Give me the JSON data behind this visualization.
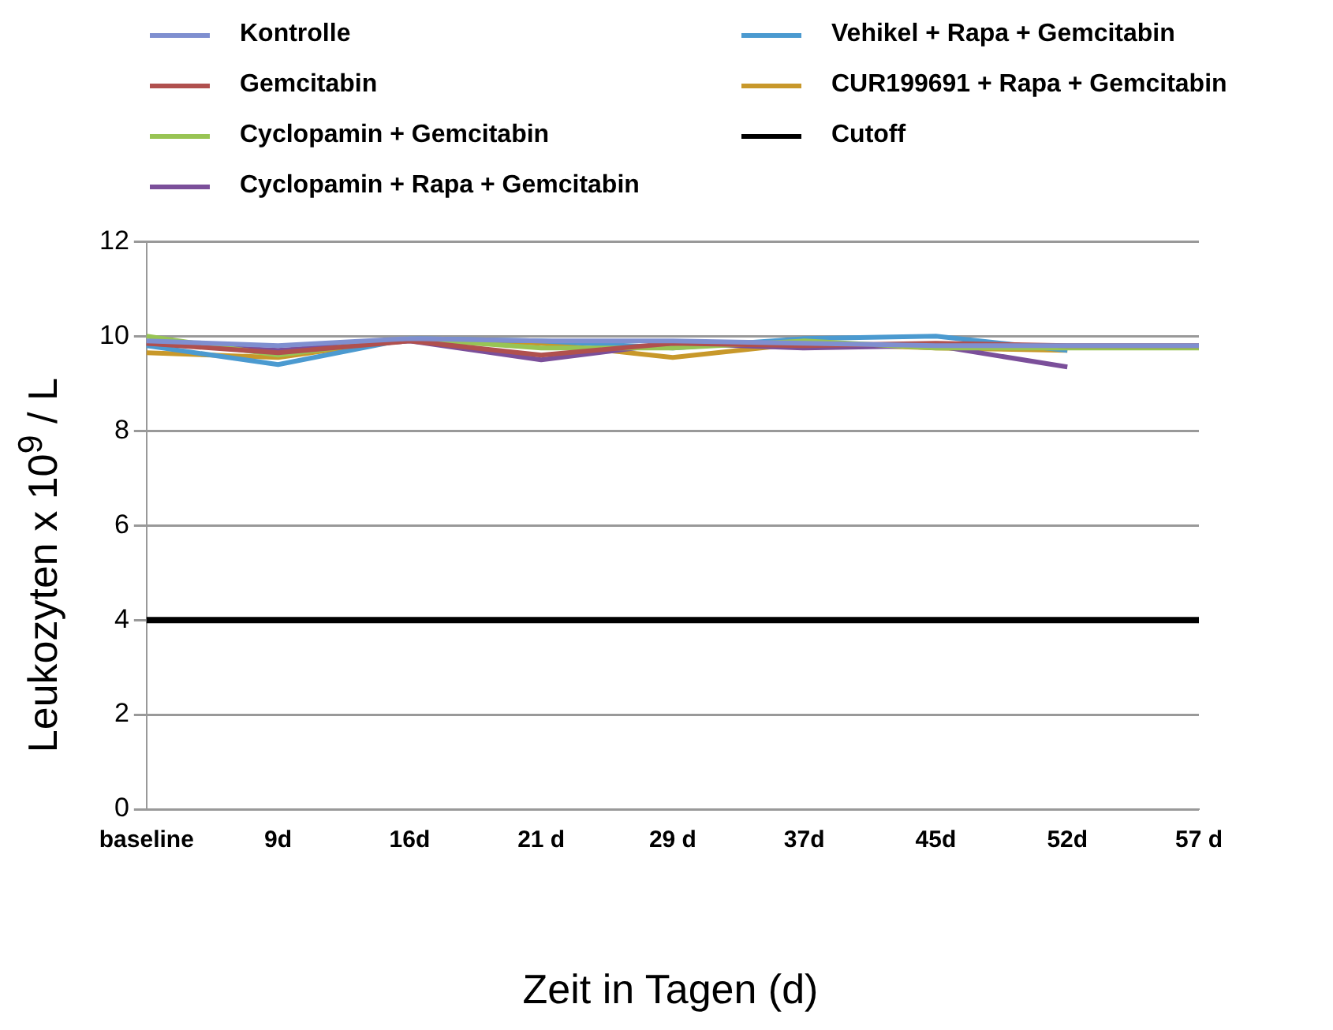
{
  "chart_data": {
    "type": "line",
    "xlabel": "Zeit in Tagen (d)",
    "ylabel": "Leukozyten x 10$^{9}$ / L",
    "categories": [
      "baseline",
      "9d",
      "16d",
      "21 d",
      "29 d",
      "37d",
      "45d",
      "52d",
      "57 d"
    ],
    "series": [
      {
        "name": "Kontrolle",
        "color": "#7f8fd0",
        "values": [
          9.9,
          9.8,
          9.95,
          9.9,
          9.9,
          9.85,
          9.8,
          9.8,
          9.8
        ]
      },
      {
        "name": "Gemcitabin",
        "color": "#b0504e",
        "values": [
          9.85,
          9.65,
          9.9,
          9.6,
          9.85,
          9.8,
          9.85,
          9.8,
          9.8
        ]
      },
      {
        "name": "Cyclopamin + Gemcitabin",
        "color": "#98c454",
        "values": [
          10.0,
          9.6,
          9.95,
          9.75,
          9.75,
          9.9,
          9.75,
          9.75,
          9.75
        ]
      },
      {
        "name": "Cyclopamin + Rapa + Gemcitabin",
        "color": "#7b4f9a",
        "values": [
          9.85,
          9.7,
          9.9,
          9.5,
          9.85,
          9.75,
          9.8,
          9.35,
          null
        ]
      },
      {
        "name": "Vehikel + Rapa + Gemcitabin",
        "color": "#4b9ad0",
        "values": [
          9.8,
          9.4,
          9.95,
          9.9,
          9.75,
          9.95,
          10.0,
          9.7,
          null
        ]
      },
      {
        "name": "CUR199691 + Rapa + Gemcitabin",
        "color": "#c8982a",
        "values": [
          9.65,
          9.55,
          9.95,
          9.85,
          9.55,
          9.85,
          9.75,
          9.7,
          null
        ]
      },
      {
        "name": "Cutoff",
        "color": "#000000",
        "values": [
          4,
          4,
          4,
          4,
          4,
          4,
          4,
          4,
          4
        ]
      }
    ],
    "ylim": [
      0,
      12
    ],
    "yticks": [
      0,
      2,
      4,
      6,
      8,
      10,
      12
    ],
    "grid": "y",
    "legend": "top",
    "marker": "none"
  }
}
